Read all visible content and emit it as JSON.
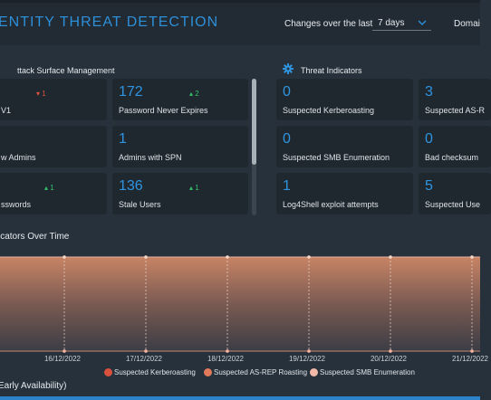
{
  "header": {
    "title": "ENTITY THREAT DETECTION",
    "changes_label": "Changes over the last",
    "period_value": "7 days",
    "domain_label": "Domai"
  },
  "attack_surface": {
    "title": "ttack Surface Management",
    "cards": [
      {
        "value": "",
        "label": "V1",
        "delta": "1",
        "trend": "down"
      },
      {
        "value": "172",
        "label": "Password Never Expires",
        "delta": "2",
        "trend": "up"
      },
      {
        "value": "",
        "label": "w Admins",
        "delta": "",
        "trend": ""
      },
      {
        "value": "1",
        "label": "Admins with SPN",
        "delta": "",
        "trend": ""
      },
      {
        "value": "",
        "label": "sswords",
        "delta": "1",
        "trend": "up"
      },
      {
        "value": "136",
        "label": "Stale Users",
        "delta": "1",
        "trend": "up"
      }
    ]
  },
  "threat_indicators": {
    "title": "Threat Indicators",
    "cards": [
      {
        "value": "0",
        "label": "Suspected Kerberoasting"
      },
      {
        "value": "3",
        "label": "Suspected AS-R"
      },
      {
        "value": "0",
        "label": "Suspected SMB Enumeration"
      },
      {
        "value": "0",
        "label": "Bad checksum"
      },
      {
        "value": "1",
        "label": "Log4Shell exploit attempts"
      },
      {
        "value": "5",
        "label": "Suspected Use"
      }
    ]
  },
  "chart_section": {
    "title": "icators Over Time"
  },
  "chart_data": {
    "type": "area",
    "x": [
      "16/12/2022",
      "17/12/2022",
      "18/12/2022",
      "19/12/2022",
      "20/12/2022",
      "21/12/2022"
    ],
    "series": [
      {
        "name": "Suspected Kerberoasting",
        "values": [
          0,
          0,
          0,
          0,
          0,
          0
        ]
      },
      {
        "name": "Suspected AS-REP Roasting",
        "values": [
          3,
          3,
          3,
          3,
          3,
          3
        ]
      },
      {
        "name": "Suspected SMB Enumeration",
        "values": [
          0,
          0,
          0,
          0,
          0,
          0
        ]
      }
    ],
    "ylim": [
      0,
      3
    ],
    "grid": false,
    "legend": "bottom",
    "colors": [
      "#d9503d",
      "#e07a5a",
      "#f2b9a8"
    ]
  },
  "footer": {
    "label": "Early Availability)"
  },
  "colors": {
    "accent": "#2f95e0",
    "up": "#35c06a",
    "down": "#e0533f"
  }
}
